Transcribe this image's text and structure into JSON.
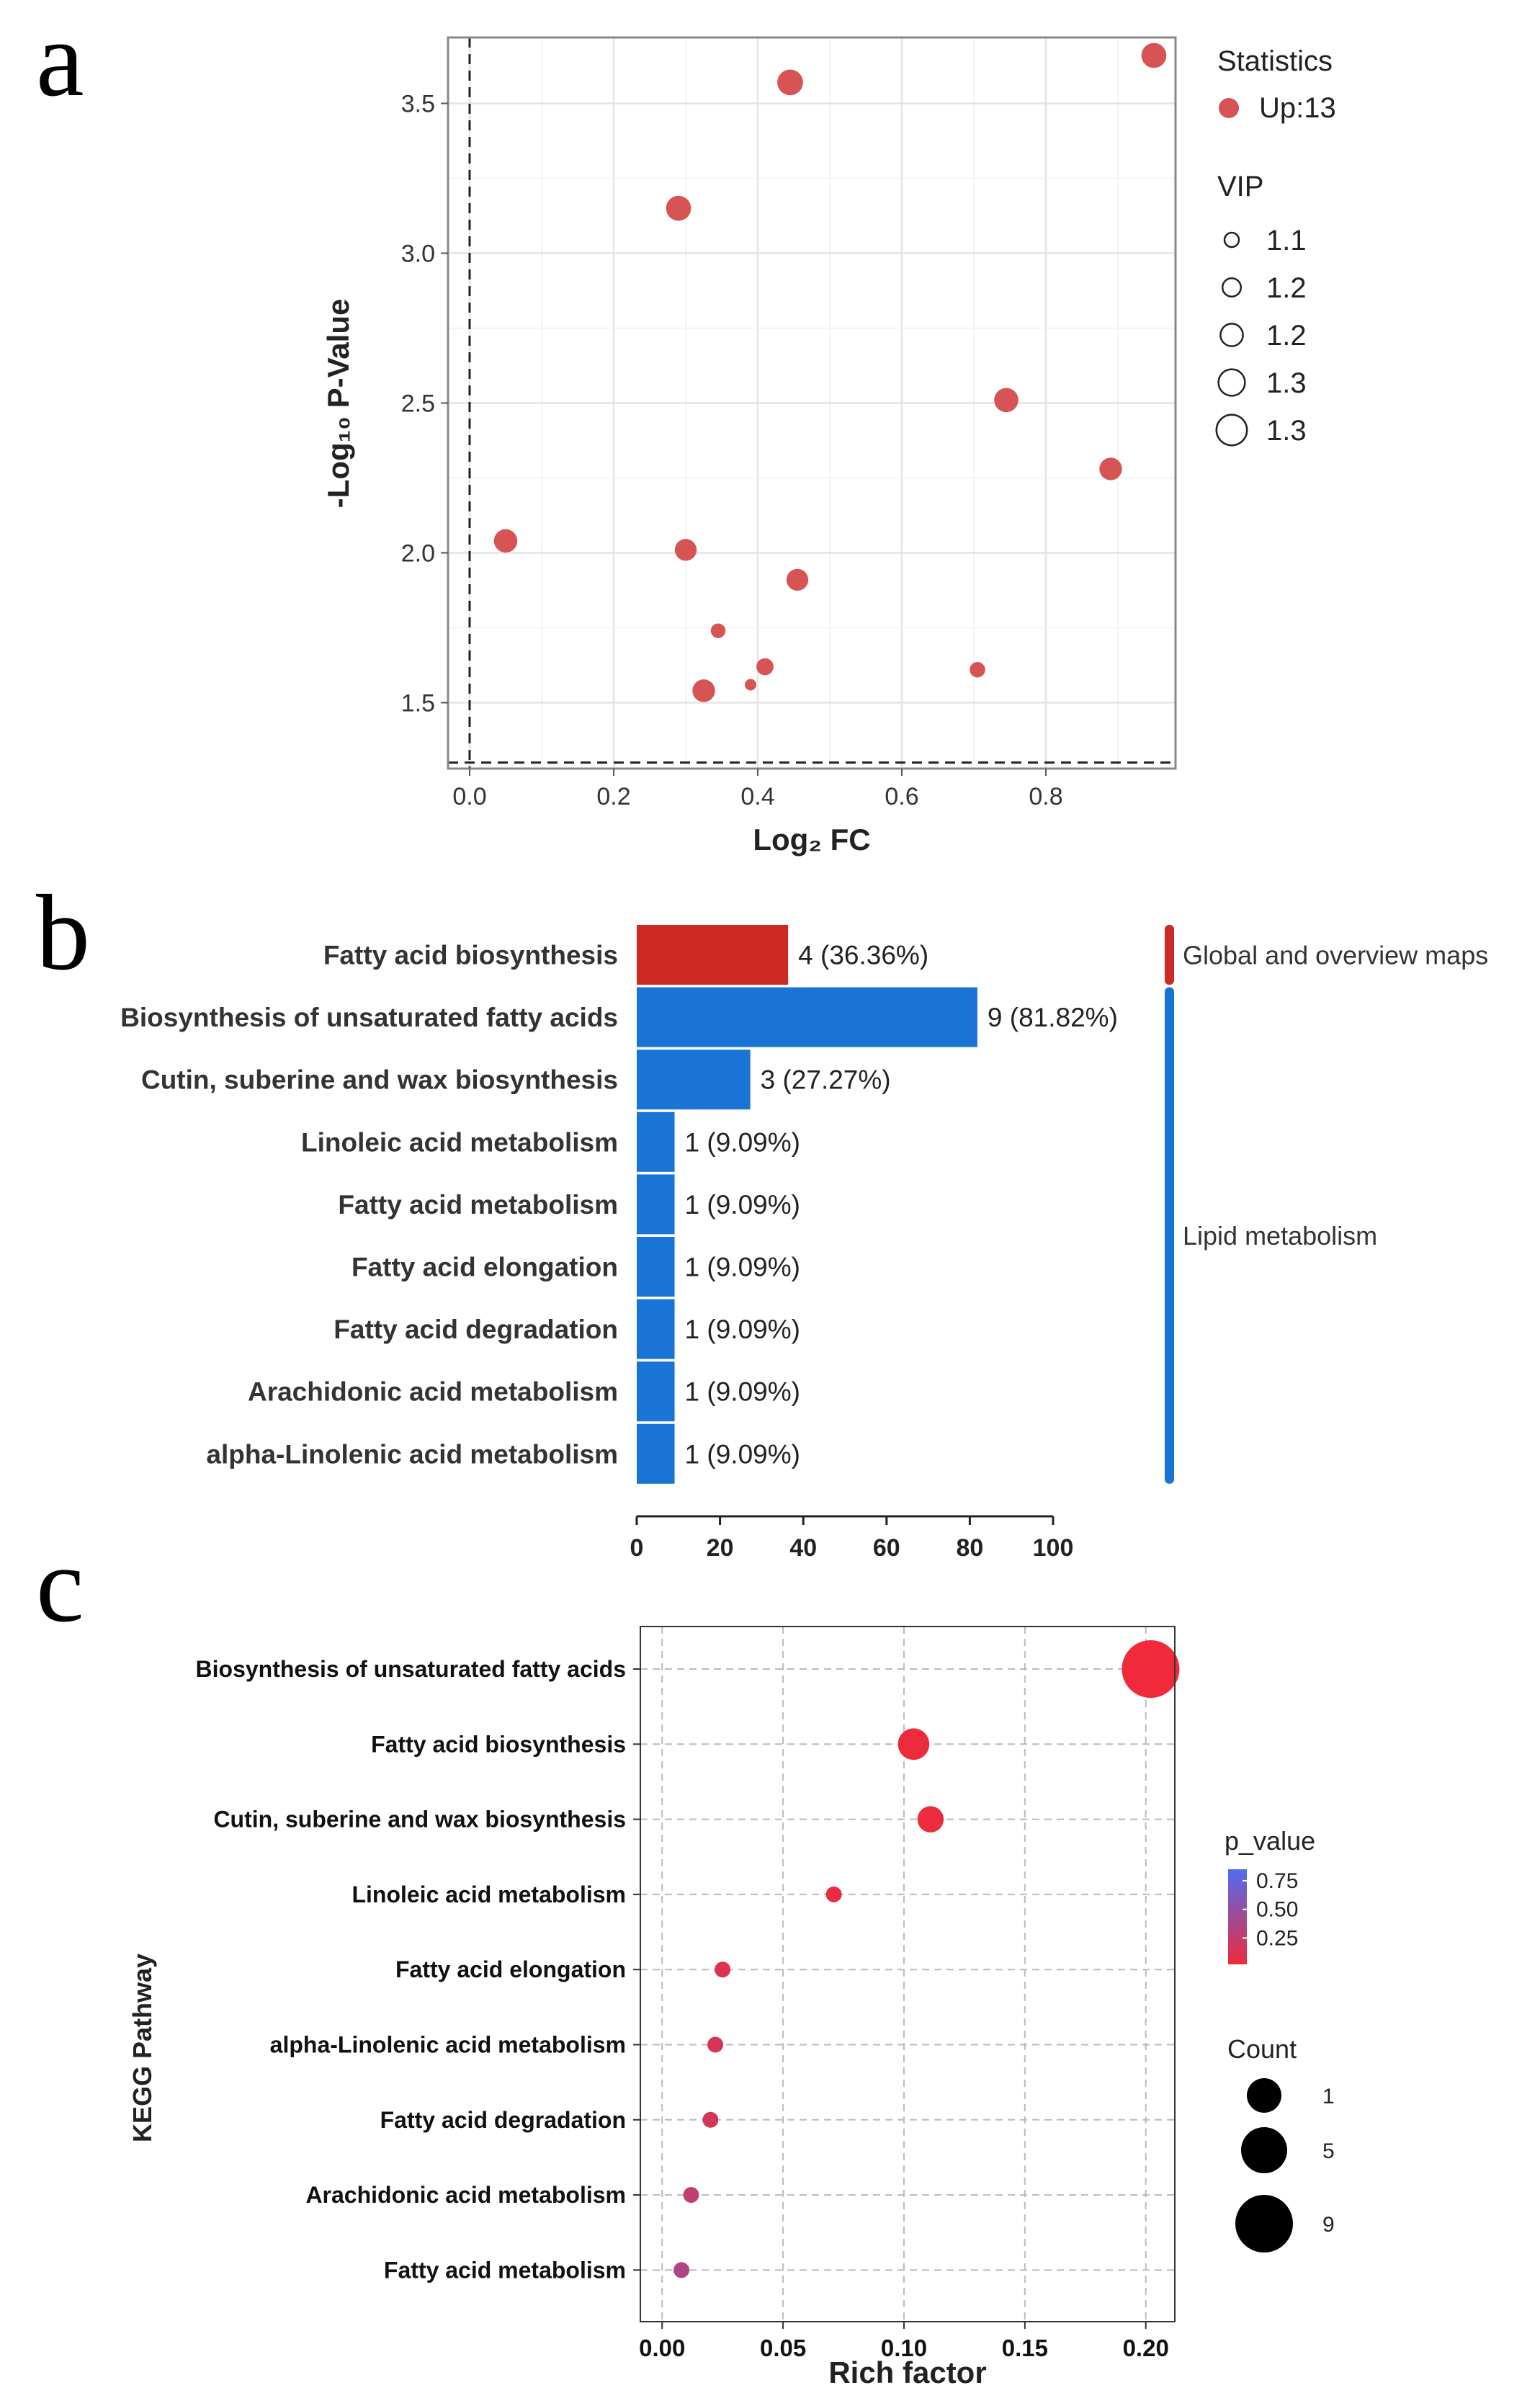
{
  "panel_labels": {
    "a": "a",
    "b": "b",
    "c": "c"
  },
  "chart_data": [
    {
      "type": "scatter",
      "panel": "a",
      "xlabel": "Log₂ FC",
      "ylabel": "-Log₁₀ P-Value",
      "xlim": [
        -0.03,
        0.98
      ],
      "ylim": [
        1.28,
        3.72
      ],
      "xticks": [
        "0.0",
        "0.2",
        "0.4",
        "0.6",
        "0.8"
      ],
      "xtick_values": [
        0.0,
        0.2,
        0.4,
        0.6,
        0.8
      ],
      "yticks": [
        "1.5",
        "2.0",
        "2.5",
        "3.0",
        "3.5"
      ],
      "ytick_values": [
        1.5,
        2.0,
        2.5,
        3.0,
        3.5
      ],
      "threshold_x": 0.0,
      "threshold_y": 1.3,
      "grid": true,
      "color": "#d65454",
      "legend_position": "right",
      "legend": {
        "statistics_title": "Statistics",
        "statistics_label": "Up:13",
        "vip_title": "VIP",
        "vip_labels": [
          "1.1",
          "1.2",
          "1.2",
          "1.3",
          "1.3"
        ],
        "vip_values": [
          1.1,
          1.15,
          1.2,
          1.25,
          1.3
        ]
      },
      "points": [
        {
          "x": 0.95,
          "y": 3.66,
          "vip": 1.27
        },
        {
          "x": 0.445,
          "y": 3.57,
          "vip": 1.28
        },
        {
          "x": 0.29,
          "y": 3.15,
          "vip": 1.27
        },
        {
          "x": 0.745,
          "y": 2.51,
          "vip": 1.26
        },
        {
          "x": 0.89,
          "y": 2.28,
          "vip": 1.24
        },
        {
          "x": 0.05,
          "y": 2.04,
          "vip": 1.25
        },
        {
          "x": 0.3,
          "y": 2.01,
          "vip": 1.23
        },
        {
          "x": 0.455,
          "y": 1.91,
          "vip": 1.23
        },
        {
          "x": 0.345,
          "y": 1.74,
          "vip": 1.14
        },
        {
          "x": 0.41,
          "y": 1.62,
          "vip": 1.17
        },
        {
          "x": 0.325,
          "y": 1.54,
          "vip": 1.24
        },
        {
          "x": 0.39,
          "y": 1.56,
          "vip": 1.1
        },
        {
          "x": 0.705,
          "y": 1.61,
          "vip": 1.15
        }
      ]
    },
    {
      "type": "bar",
      "panel": "b",
      "orientation": "horizontal",
      "categories": [
        "Fatty acid biosynthesis",
        "Biosynthesis of unsaturated fatty acids",
        "Cutin, suberine and wax biosynthesis",
        "Linoleic acid metabolism",
        "Fatty acid metabolism",
        "Fatty acid elongation",
        "Fatty acid degradation",
        "Arachidonic acid metabolism",
        "alpha-Linolenic acid metabolism"
      ],
      "values": [
        36.36,
        81.82,
        27.27,
        9.09,
        9.09,
        9.09,
        9.09,
        9.09,
        9.09
      ],
      "bar_labels": [
        "4 (36.36%)",
        "9 (81.82%)",
        "3 (27.27%)",
        "1 (9.09%)",
        "1 (9.09%)",
        "1 (9.09%)",
        "1 (9.09%)",
        "1 (9.09%)",
        "1 (9.09%)"
      ],
      "groups": [
        {
          "name": "Global and overview maps",
          "color": "#cc2a22",
          "first": 0,
          "last": 0
        },
        {
          "name": "Lipid metabolism",
          "color": "#1a74d6",
          "first": 1,
          "last": 8
        }
      ],
      "xlim": [
        0,
        100
      ],
      "xticks": [
        "0",
        "20",
        "40",
        "60",
        "80",
        "100"
      ],
      "xtick_values": [
        0,
        20,
        40,
        60,
        80,
        100
      ]
    },
    {
      "type": "scatter",
      "panel": "c",
      "xlabel": "Rich factor",
      "ylabel": "KEGG Pathway",
      "xlim": [
        -0.009,
        0.212
      ],
      "xticks": [
        "0.00",
        "0.05",
        "0.10",
        "0.15",
        "0.20"
      ],
      "xtick_values": [
        0.0,
        0.05,
        0.1,
        0.15,
        0.2
      ],
      "categories": [
        "Biosynthesis of unsaturated fatty acids",
        "Fatty acid biosynthesis",
        "Cutin, suberine and wax biosynthesis",
        "Linoleic acid metabolism",
        "Fatty acid elongation",
        "alpha-Linolenic acid metabolism",
        "Fatty acid degradation",
        "Arachidonic acid metabolism",
        "Fatty acid metabolism"
      ],
      "rich_factor": [
        0.202,
        0.104,
        0.111,
        0.071,
        0.025,
        0.022,
        0.02,
        0.012,
        0.008
      ],
      "count": [
        9,
        4,
        3,
        1,
        1,
        1,
        1,
        1,
        1
      ],
      "p_value": [
        0.02,
        0.03,
        0.04,
        0.06,
        0.12,
        0.15,
        0.18,
        0.28,
        0.36
      ],
      "grid": true,
      "legend": {
        "color_title": "p_value",
        "color_ticks": [
          "0.75",
          "0.50",
          "0.25"
        ],
        "color_tick_values": [
          0.75,
          0.5,
          0.25
        ],
        "color_high": "#4f6cf0",
        "color_low": "#f02a3a",
        "size_title": "Count",
        "size_labels": [
          "1",
          "5",
          "9"
        ],
        "size_values": [
          1,
          5,
          9
        ]
      }
    }
  ]
}
